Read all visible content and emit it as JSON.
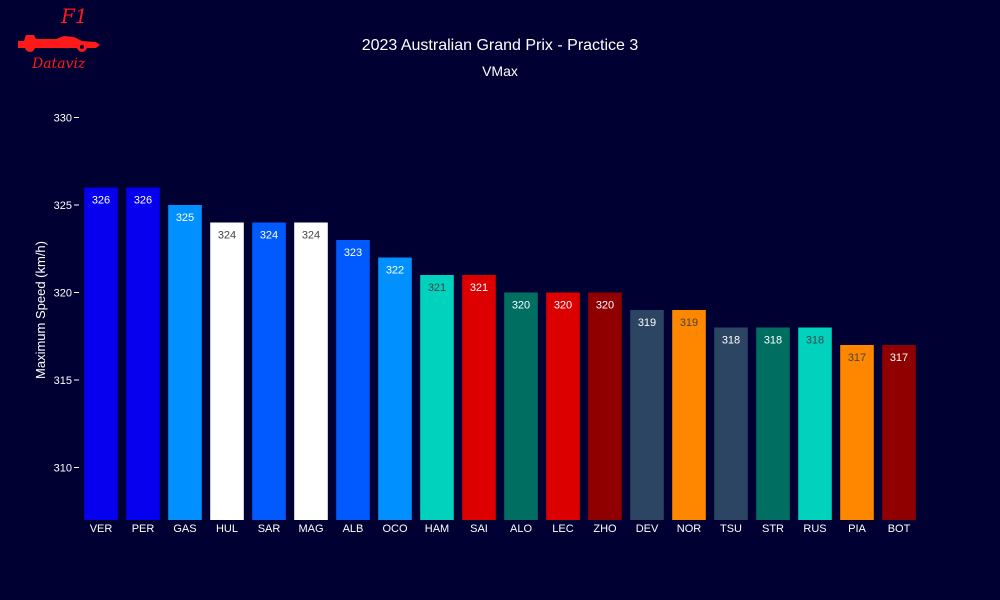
{
  "logo": {
    "top_text": "F1",
    "bottom_text": "Dataviz",
    "icon": "f1-car-icon",
    "color": "#ff1a1a"
  },
  "chart_data": {
    "type": "bar",
    "title": "2023 Australian Grand Prix - Practice 3",
    "subtitle": "VMax",
    "xlabel": "",
    "ylabel": "Maximum Speed (km/h)",
    "ylim": [
      307,
      331
    ],
    "yticks": [
      310,
      315,
      320,
      325,
      330
    ],
    "grid": false,
    "background": "#000033",
    "categories": [
      "VER",
      "PER",
      "GAS",
      "HUL",
      "SAR",
      "MAG",
      "ALB",
      "OCO",
      "HAM",
      "SAI",
      "ALO",
      "LEC",
      "ZHO",
      "DEV",
      "NOR",
      "TSU",
      "STR",
      "RUS",
      "PIA",
      "BOT"
    ],
    "values": [
      326,
      326,
      325,
      324,
      324,
      324,
      323,
      322,
      321,
      321,
      320,
      320,
      320,
      319,
      319,
      318,
      318,
      318,
      317,
      317
    ],
    "colors": [
      "#0600ef",
      "#0600ef",
      "#0090ff",
      "#ffffff",
      "#005aff",
      "#ffffff",
      "#005aff",
      "#0090ff",
      "#00d2be",
      "#dc0000",
      "#006f62",
      "#dc0000",
      "#900000",
      "#2b4562",
      "#ff8700",
      "#2b4562",
      "#006f62",
      "#00d2be",
      "#ff8700",
      "#900000"
    ],
    "label_colors": [
      "#ffffff",
      "#ffffff",
      "#ffffff",
      "#444444",
      "#ffffff",
      "#444444",
      "#ffffff",
      "#ffffff",
      "#444444",
      "#ffffff",
      "#ffffff",
      "#ffffff",
      "#ffffff",
      "#ffffff",
      "#444444",
      "#ffffff",
      "#ffffff",
      "#444444",
      "#444444",
      "#ffffff"
    ]
  }
}
